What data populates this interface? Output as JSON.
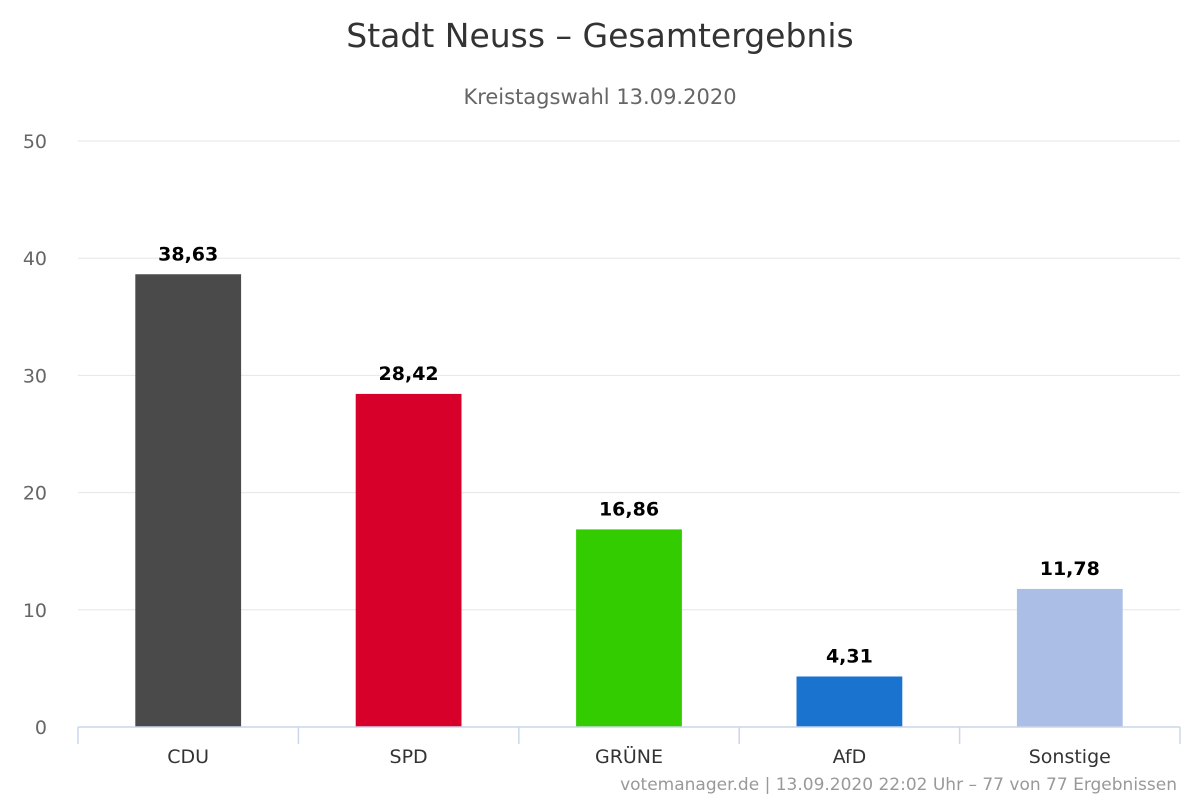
{
  "chart_data": {
    "type": "bar",
    "title": "Stadt Neuss – Gesamtergebnis",
    "subtitle": "Kreistagswahl 13.09.2020",
    "categories": [
      "CDU",
      "SPD",
      "GRÜNE",
      "AfD",
      "Sonstige"
    ],
    "values": [
      38.63,
      28.42,
      16.86,
      4.31,
      11.78
    ],
    "value_labels": [
      "38,63",
      "28,42",
      "16,86",
      "4,31",
      "11,78"
    ],
    "colors": [
      "#4a4a4a",
      "#d7002a",
      "#33cc00",
      "#1a73cf",
      "#abbfe6"
    ],
    "ylim": [
      0,
      50
    ],
    "yticks": [
      "0",
      "10",
      "20",
      "30",
      "40",
      "50"
    ],
    "xlabel": "",
    "ylabel": "",
    "grid": true,
    "legend": "none"
  },
  "credit": "votemanager.de | 13.09.2020 22:02 Uhr – 77 von 77 Ergebnissen"
}
